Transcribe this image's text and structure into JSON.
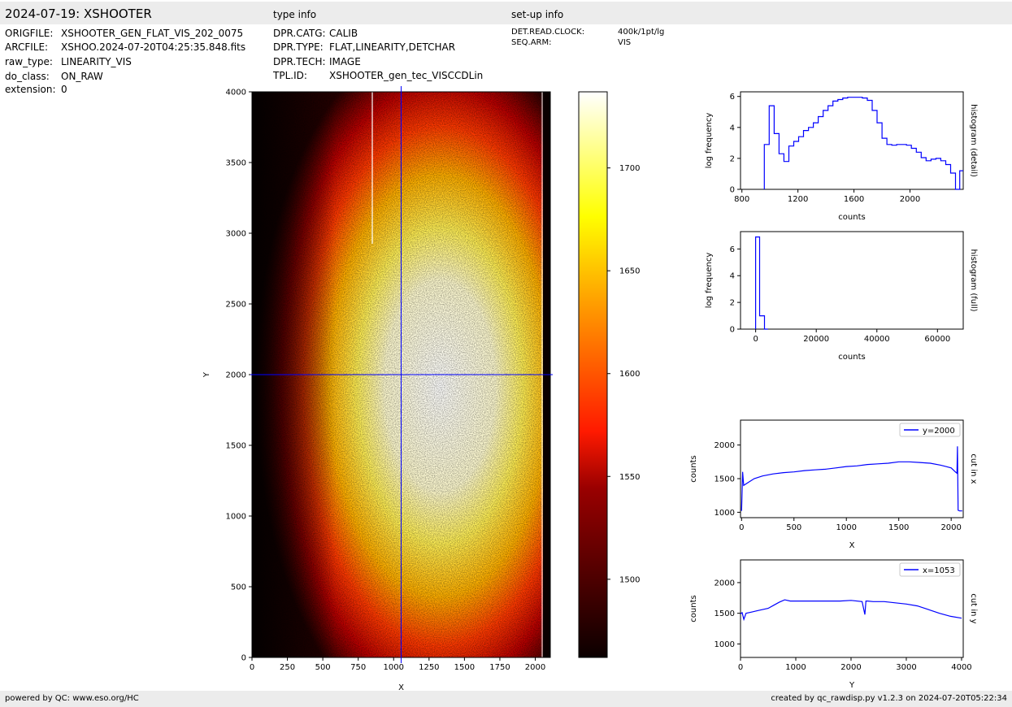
{
  "header": {
    "title": "2024-07-19: XSHOOTER",
    "type_info_label": "type info",
    "setup_info_label": "set-up info"
  },
  "file_info": [
    {
      "key": "ORIGFILE:",
      "value": "XSHOOTER_GEN_FLAT_VIS_202_0075"
    },
    {
      "key": "ARCFILE:",
      "value": "XSHOO.2024-07-20T04:25:35.848.fits"
    },
    {
      "key": "raw_type:",
      "value": "LINEARITY_VIS"
    },
    {
      "key": "do_class:",
      "value": "ON_RAW"
    },
    {
      "key": "extension:",
      "value": "0"
    }
  ],
  "type_info": [
    {
      "key": "DPR.CATG:",
      "value": "CALIB"
    },
    {
      "key": "DPR.TYPE:",
      "value": "FLAT,LINEARITY,DETCHAR"
    },
    {
      "key": "DPR.TECH:",
      "value": "IMAGE"
    },
    {
      "key": "TPL.ID:",
      "value": "XSHOOTER_gen_tec_VISCCDLin"
    }
  ],
  "setup_info": [
    {
      "key": "DET.READ.CLOCK:",
      "value": "400k/1pt/lg"
    },
    {
      "key": "SEQ.ARM:",
      "value": "VIS"
    }
  ],
  "footer": {
    "left": "powered by QC: www.eso.org/HC",
    "right": "created by qc_rawdisp.py v1.2.3 on 2024-07-20T05:22:34"
  },
  "colors": {
    "band": "#ececec",
    "cut_line": "#0000ff",
    "colormap": "hot"
  },
  "chart_data": [
    {
      "type": "heatmap",
      "name": "raw image",
      "xlabel": "X",
      "ylabel": "Y",
      "xlim": [
        0,
        2106
      ],
      "ylim": [
        0,
        4000
      ],
      "xticks": [
        0,
        250,
        500,
        750,
        1000,
        1250,
        1500,
        1750,
        2000
      ],
      "yticks": [
        0,
        500,
        1000,
        1500,
        2000,
        2500,
        3000,
        3500,
        4000
      ],
      "colormap": "hot",
      "cut_x": 1053,
      "cut_y": 2000,
      "colorbar": {
        "min": 1462,
        "max": 1737,
        "ticks": [
          1500,
          1550,
          1600,
          1650,
          1700
        ]
      }
    },
    {
      "type": "line",
      "name": "histogram (detail)",
      "side_label": "histogram (detail)",
      "xlabel": "counts",
      "ylabel": "log frequency",
      "xlim": [
        790,
        2380
      ],
      "ylim": [
        0,
        6.3
      ],
      "xticks": [
        800,
        1200,
        1600,
        2000
      ],
      "yticks": [
        0,
        2,
        4,
        6
      ],
      "step_edges": [
        960,
        995,
        1030,
        1065,
        1100,
        1135,
        1170,
        1205,
        1240,
        1275,
        1310,
        1345,
        1380,
        1415,
        1450,
        1485,
        1520,
        1555,
        1590,
        1625,
        1660,
        1695,
        1730,
        1765,
        1800,
        1835,
        1870,
        1905,
        1940,
        1975,
        2010,
        2045,
        2080,
        2115,
        2150,
        2185,
        2220,
        2255,
        2290,
        2325
      ],
      "step_values": [
        2.9,
        5.4,
        3.6,
        2.3,
        1.8,
        2.8,
        3.1,
        3.4,
        3.8,
        4.0,
        4.3,
        4.7,
        5.1,
        5.4,
        5.7,
        5.8,
        5.9,
        5.95,
        5.95,
        5.95,
        5.9,
        5.75,
        5.1,
        4.3,
        3.3,
        2.9,
        2.85,
        2.9,
        2.9,
        2.85,
        2.65,
        2.4,
        2.05,
        1.85,
        1.95,
        2.0,
        1.85,
        1.6,
        1.05
      ],
      "tail": [
        [
          2325,
          0
        ],
        [
          2355,
          0
        ],
        [
          2355,
          1.2
        ],
        [
          2380,
          1.2
        ]
      ]
    },
    {
      "type": "line",
      "name": "histogram (full)",
      "side_label": "histogram (full)",
      "xlabel": "counts",
      "ylabel": "log frequency",
      "xlim": [
        -5000,
        68500
      ],
      "ylim": [
        0,
        7.3
      ],
      "xticks": [
        0,
        20000,
        40000,
        60000
      ],
      "yticks": [
        0,
        2,
        4,
        6
      ],
      "step_edges": [
        0,
        1300,
        2900,
        4000
      ],
      "step_values": [
        6.9,
        1.0,
        0.0
      ]
    },
    {
      "type": "line",
      "name": "cut in x",
      "side_label": "cut in x",
      "legend": "y=2000",
      "legend_position": "upper right",
      "xlabel": "X",
      "ylabel": "counts",
      "xlim": [
        -10,
        2115
      ],
      "ylim": [
        920,
        2370
      ],
      "xticks": [
        0,
        500,
        1000,
        1500,
        2000
      ],
      "yticks": [
        1000,
        1500,
        2000
      ],
      "x": [
        0,
        10,
        20,
        60,
        120,
        200,
        300,
        400,
        500,
        600,
        700,
        800,
        900,
        1000,
        1100,
        1200,
        1300,
        1400,
        1500,
        1600,
        1700,
        1800,
        1900,
        1950,
        2000,
        2040,
        2055,
        2060,
        2066,
        2080,
        2106
      ],
      "y": [
        1020,
        1600,
        1400,
        1440,
        1500,
        1540,
        1570,
        1590,
        1600,
        1620,
        1630,
        1640,
        1660,
        1680,
        1690,
        1710,
        1720,
        1730,
        1750,
        1750,
        1740,
        1730,
        1700,
        1680,
        1660,
        1600,
        1580,
        1980,
        1030,
        1020,
        1020
      ]
    },
    {
      "type": "line",
      "name": "cut in y",
      "side_label": "cut in y",
      "legend": "x=1053",
      "legend_position": "upper right",
      "xlabel": "Y",
      "ylabel": "counts",
      "xlim": [
        0,
        4030
      ],
      "ylim": [
        780,
        2370
      ],
      "xticks": [
        0,
        1000,
        2000,
        3000,
        4000
      ],
      "yticks": [
        1000,
        1500,
        2000
      ],
      "x": [
        0,
        30,
        60,
        100,
        200,
        300,
        400,
        500,
        600,
        700,
        800,
        900,
        1000,
        1200,
        1400,
        1600,
        1800,
        2000,
        2200,
        2250,
        2270,
        2300,
        2400,
        2600,
        2800,
        3000,
        3200,
        3400,
        3600,
        3800,
        4000
      ],
      "y": [
        1490,
        1510,
        1400,
        1500,
        1520,
        1540,
        1560,
        1580,
        1630,
        1680,
        1720,
        1700,
        1700,
        1700,
        1700,
        1700,
        1700,
        1710,
        1690,
        1480,
        1700,
        1700,
        1690,
        1690,
        1670,
        1650,
        1620,
        1560,
        1500,
        1450,
        1420
      ]
    }
  ]
}
